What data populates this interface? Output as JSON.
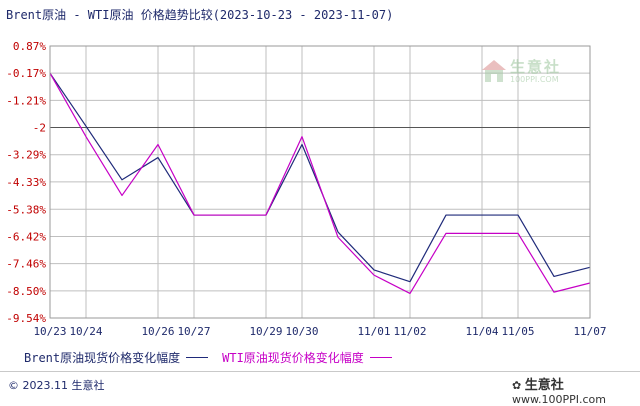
{
  "title": "Brent原油 - WTI原油 价格趋势比较(2023-10-23 - 2023-11-07)",
  "colors": {
    "grid": "#bfbfbf",
    "axis": "#9a9a9a",
    "brent": "#1f2a7a",
    "wti": "#c600c6",
    "zero_line": "#555555"
  },
  "chart_data": {
    "type": "line",
    "x": [
      "10/23",
      "10/24",
      "10/25",
      "10/26",
      "10/27",
      "10/28",
      "10/29",
      "10/30",
      "10/31",
      "11/01",
      "11/02",
      "11/03",
      "11/04",
      "11/05",
      "11/06",
      "11/07"
    ],
    "x_tick_labels": [
      "10/23",
      "10/24",
      "10/26",
      "10/27",
      "10/29",
      "10/30",
      "11/01",
      "11/02",
      "11/04",
      "11/05",
      "11/07"
    ],
    "y_tick_labels": [
      "0.87%",
      "-0.17%",
      "-1.21%",
      "-2",
      "-3.29%",
      "-4.33%",
      "-5.38%",
      "-6.42%",
      "-7.46%",
      "-8.50%",
      "-9.54%"
    ],
    "y_ticks": [
      0.87,
      -0.17,
      -1.21,
      -2.25,
      -3.29,
      -4.33,
      -5.38,
      -6.42,
      -7.46,
      -8.5,
      -9.54
    ],
    "ylim": [
      -9.54,
      0.87
    ],
    "reference_line": -2.25,
    "grid": true,
    "legend_position": "bottom",
    "series": [
      {
        "name": "Brent原油现货价格变化幅度",
        "x": [
          "10/23",
          "10/24",
          "10/25",
          "10/26",
          "10/27",
          "10/28",
          "10/29",
          "10/30",
          "10/31",
          "11/01",
          "11/02",
          "11/03",
          "11/04",
          "11/05",
          "11/06",
          "11/07"
        ],
        "values": [
          -0.17,
          -2.2,
          -4.25,
          -3.4,
          -5.6,
          -5.6,
          -5.6,
          -2.9,
          -6.25,
          -7.7,
          -8.15,
          -5.6,
          -5.6,
          -5.6,
          -7.95,
          -7.6
        ]
      },
      {
        "name": "WTI原油现货价格变化幅度",
        "x": [
          "10/23",
          "10/24",
          "10/25",
          "10/26",
          "10/27",
          "10/28",
          "10/29",
          "10/30",
          "10/31",
          "11/01",
          "11/02",
          "11/03",
          "11/04",
          "11/05",
          "11/06",
          "11/07"
        ],
        "values": [
          -0.17,
          -2.6,
          -4.85,
          -2.9,
          -5.6,
          -5.6,
          -5.6,
          -2.6,
          -6.45,
          -7.9,
          -8.6,
          -6.3,
          -6.3,
          -6.3,
          -8.55,
          -8.2
        ]
      }
    ]
  },
  "watermark": {
    "text": "生意社",
    "sub": "100PPI.COM"
  },
  "footer": {
    "copyright": "© 2023.11 生意社",
    "credit_brand": "生意社",
    "credit_url": "www.100PPI.com"
  }
}
